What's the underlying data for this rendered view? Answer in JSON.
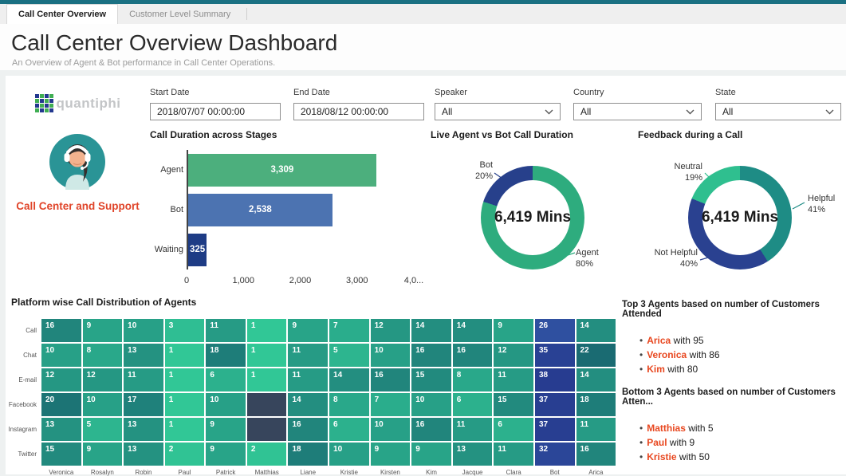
{
  "tabs": [
    {
      "label": "Call Center Overview",
      "active": true
    },
    {
      "label": "Customer Level Summary",
      "active": false
    }
  ],
  "header": {
    "title": "Call Center Overview Dashboard",
    "subtitle": "An Overview of Agent & Bot performance in Call Center Operations."
  },
  "branding": {
    "logo_text": "quantiphi",
    "caption": "Call Center and Support",
    "avatar_icon": "support-agent-avatar-icon"
  },
  "filters": {
    "start_date": {
      "label": "Start Date",
      "value": "2018/07/07 00:00:00"
    },
    "end_date": {
      "label": "End Date",
      "value": "2018/08/12 00:00:00"
    },
    "speaker": {
      "label": "Speaker",
      "value": "All"
    },
    "country": {
      "label": "Country",
      "value": "All"
    },
    "state": {
      "label": "State",
      "value": "All"
    }
  },
  "icons": {
    "select_chevron": "chevron-down-icon",
    "logo_mark": "logo-grid-icon"
  },
  "colors": {
    "top_strip": "#1a7082",
    "accent_orange": "#e8471f",
    "caption_red": "#e0452a",
    "heatmap_scale": {
      "green_low": "#31c796",
      "teal_high": "#1a6b72",
      "navy_low": "#2f50a0",
      "navy_high": "#273c90",
      "empty": "#37455c"
    }
  },
  "chart_data": [
    {
      "id": "call_duration_stages",
      "type": "bar",
      "orientation": "horizontal",
      "title": "Call Duration across Stages",
      "categories": [
        "Agent",
        "Bot",
        "Waiting"
      ],
      "values": [
        3309,
        2538,
        325
      ],
      "value_labels": [
        "3,309",
        "2,538",
        "325"
      ],
      "bar_colors": [
        "#4caf7d",
        "#4c73b1",
        "#1e3c85"
      ],
      "xlim": [
        0,
        4000
      ],
      "x_ticks": [
        "0",
        "1,000",
        "2,000",
        "3,000",
        "4,0..."
      ]
    },
    {
      "id": "agent_vs_bot_duration",
      "type": "donut",
      "title": "Live Agent vs Bot Call Duration",
      "center_label": "6,419 Mins",
      "slices": [
        {
          "label": "Agent",
          "pct": 80,
          "pct_label": "80%",
          "color": "#2eac7e"
        },
        {
          "label": "Bot",
          "pct": 20,
          "pct_label": "20%",
          "color": "#27408b"
        }
      ]
    },
    {
      "id": "feedback_during_call",
      "type": "donut",
      "title": "Feedback during a Call",
      "center_label": "6,419 Mins",
      "slices": [
        {
          "label": "Helpful",
          "pct": 41,
          "pct_label": "41%",
          "color": "#1e8c85"
        },
        {
          "label": "Not Helpful",
          "pct": 40,
          "pct_label": "40%",
          "color": "#2a4190"
        },
        {
          "label": "Neutral",
          "pct": 19,
          "pct_label": "19%",
          "color": "#2fbf8f"
        }
      ]
    },
    {
      "id": "platform_heatmap",
      "type": "heatmap",
      "title": "Platform wise Call Distribution of Agents",
      "rows": [
        "Call",
        "Chat",
        "E-mail",
        "Facebook",
        "Instagram",
        "Twitter"
      ],
      "columns": [
        "Veronica",
        "Rosalyn",
        "Robin",
        "Paul",
        "Patrick",
        "Matthias",
        "Liane",
        "Kristie",
        "Kirsten",
        "Kim",
        "Jacque",
        "Clara",
        "Bot",
        "Arica"
      ],
      "values": [
        [
          16,
          9,
          10,
          3,
          11,
          1,
          9,
          7,
          12,
          14,
          14,
          9,
          26,
          14
        ],
        [
          10,
          8,
          13,
          1,
          18,
          1,
          11,
          5,
          10,
          16,
          16,
          12,
          35,
          22
        ],
        [
          12,
          12,
          11,
          1,
          6,
          1,
          11,
          14,
          16,
          15,
          8,
          11,
          38,
          14
        ],
        [
          20,
          10,
          17,
          1,
          10,
          null,
          14,
          8,
          7,
          10,
          6,
          15,
          37,
          18
        ],
        [
          13,
          5,
          13,
          1,
          9,
          null,
          16,
          6,
          10,
          16,
          11,
          6,
          37,
          11
        ],
        [
          15,
          9,
          13,
          2,
          9,
          2,
          18,
          10,
          9,
          9,
          13,
          11,
          32,
          16
        ]
      ]
    }
  ],
  "top_agents": {
    "title": "Top 3 Agents based on number of Customers Attended",
    "items": [
      {
        "name": "Arica",
        "rest": "with 95"
      },
      {
        "name": "Veronica",
        "rest": "with 86"
      },
      {
        "name": "Kim",
        "rest": "with 80"
      }
    ]
  },
  "bottom_agents": {
    "title": "Bottom 3 Agents based on number of Customers Atten...",
    "items": [
      {
        "name": "Matthias",
        "rest": "with 5"
      },
      {
        "name": "Paul",
        "rest": "with 9"
      },
      {
        "name": "Kristie",
        "rest": "with 50"
      }
    ]
  }
}
